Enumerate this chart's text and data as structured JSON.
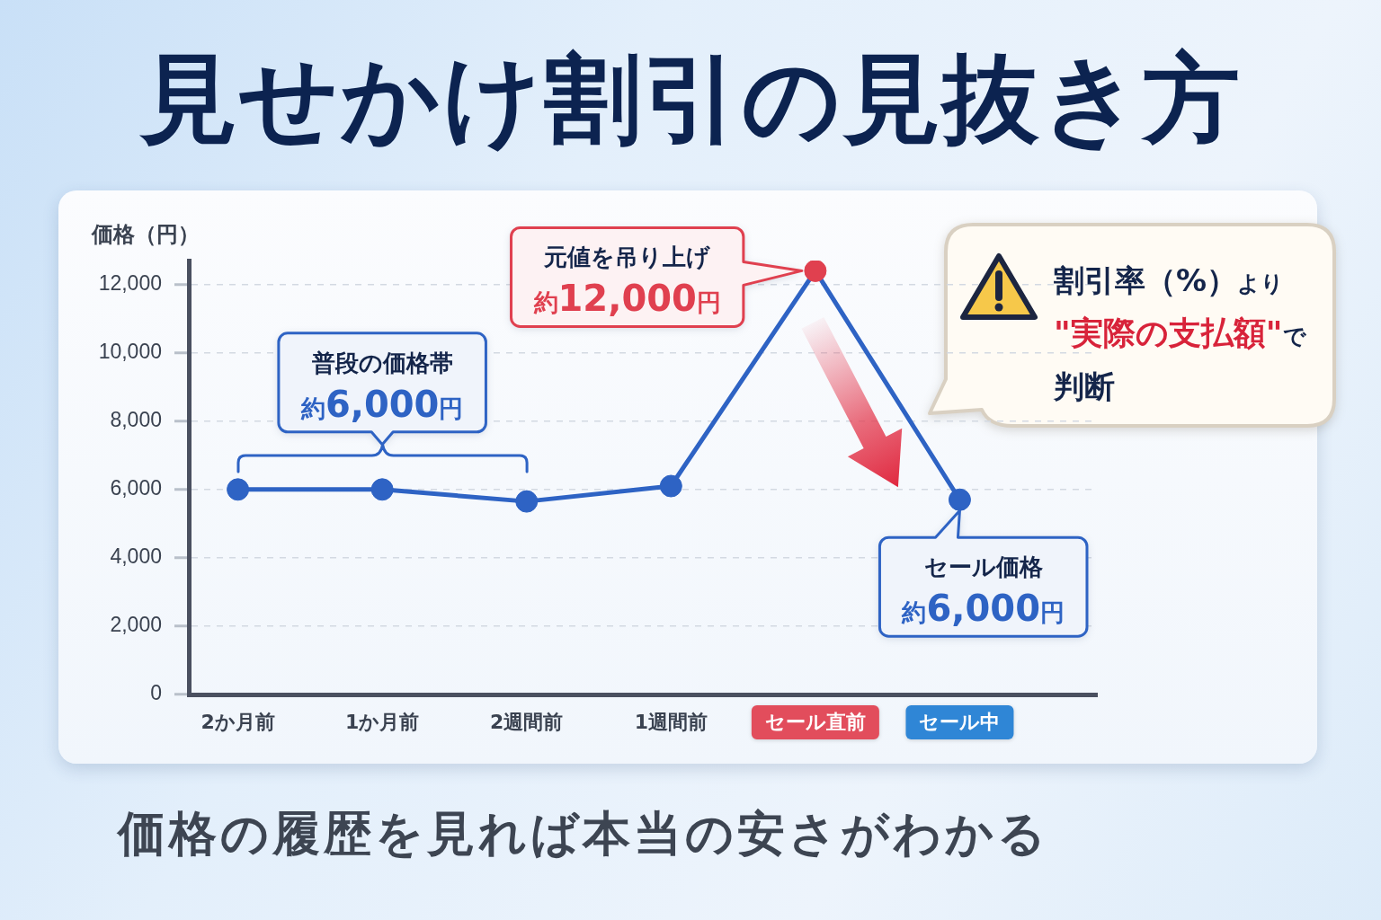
{
  "chart_data": {
    "type": "line",
    "title": "見せかけ割引の見抜き方",
    "subtitle": "価格の履歴を見れば本当の安さがわかる",
    "ylabel": "価格（円）",
    "categories": [
      "2か月前",
      "1か月前",
      "2週間前",
      "1週間前",
      "セール直前",
      "セール中"
    ],
    "series": [
      {
        "color": "#2e63c4",
        "colors": [
          "#2e63c4",
          "#2e63c4",
          "#2e63c4",
          "#2e63c4",
          "#e0404f",
          "#2e63c4"
        ],
        "values": [
          6000,
          6000,
          5650,
          6100,
          12400,
          5700
        ]
      }
    ],
    "ylim": [
      0,
      12700
    ],
    "yticks": [
      0,
      {
        "value": 2000,
        "label": "2,000"
      },
      {
        "value": 4000,
        "label": "4,000"
      },
      {
        "value": 6000,
        "label": "6,000"
      },
      {
        "value": 8000,
        "label": "8,000"
      },
      {
        "value": 10000,
        "label": "10,000"
      },
      {
        "value": 12000,
        "label": "12,000"
      }
    ],
    "grid": "y",
    "marker": "circle",
    "line_style": "solid",
    "annotations": [
      {
        "text": "普段の価格帯約6,000円",
        "x": "1か月前",
        "y": 6000
      },
      {
        "text": "元値を吊り上げ約12,000円",
        "x": "セール直前",
        "y": 12400
      },
      {
        "text": "セール価格約6,000円",
        "x": "セール中",
        "y": 5700
      },
      "割引率（%）より\"実際の支払額\"で判断"
    ]
  }
}
